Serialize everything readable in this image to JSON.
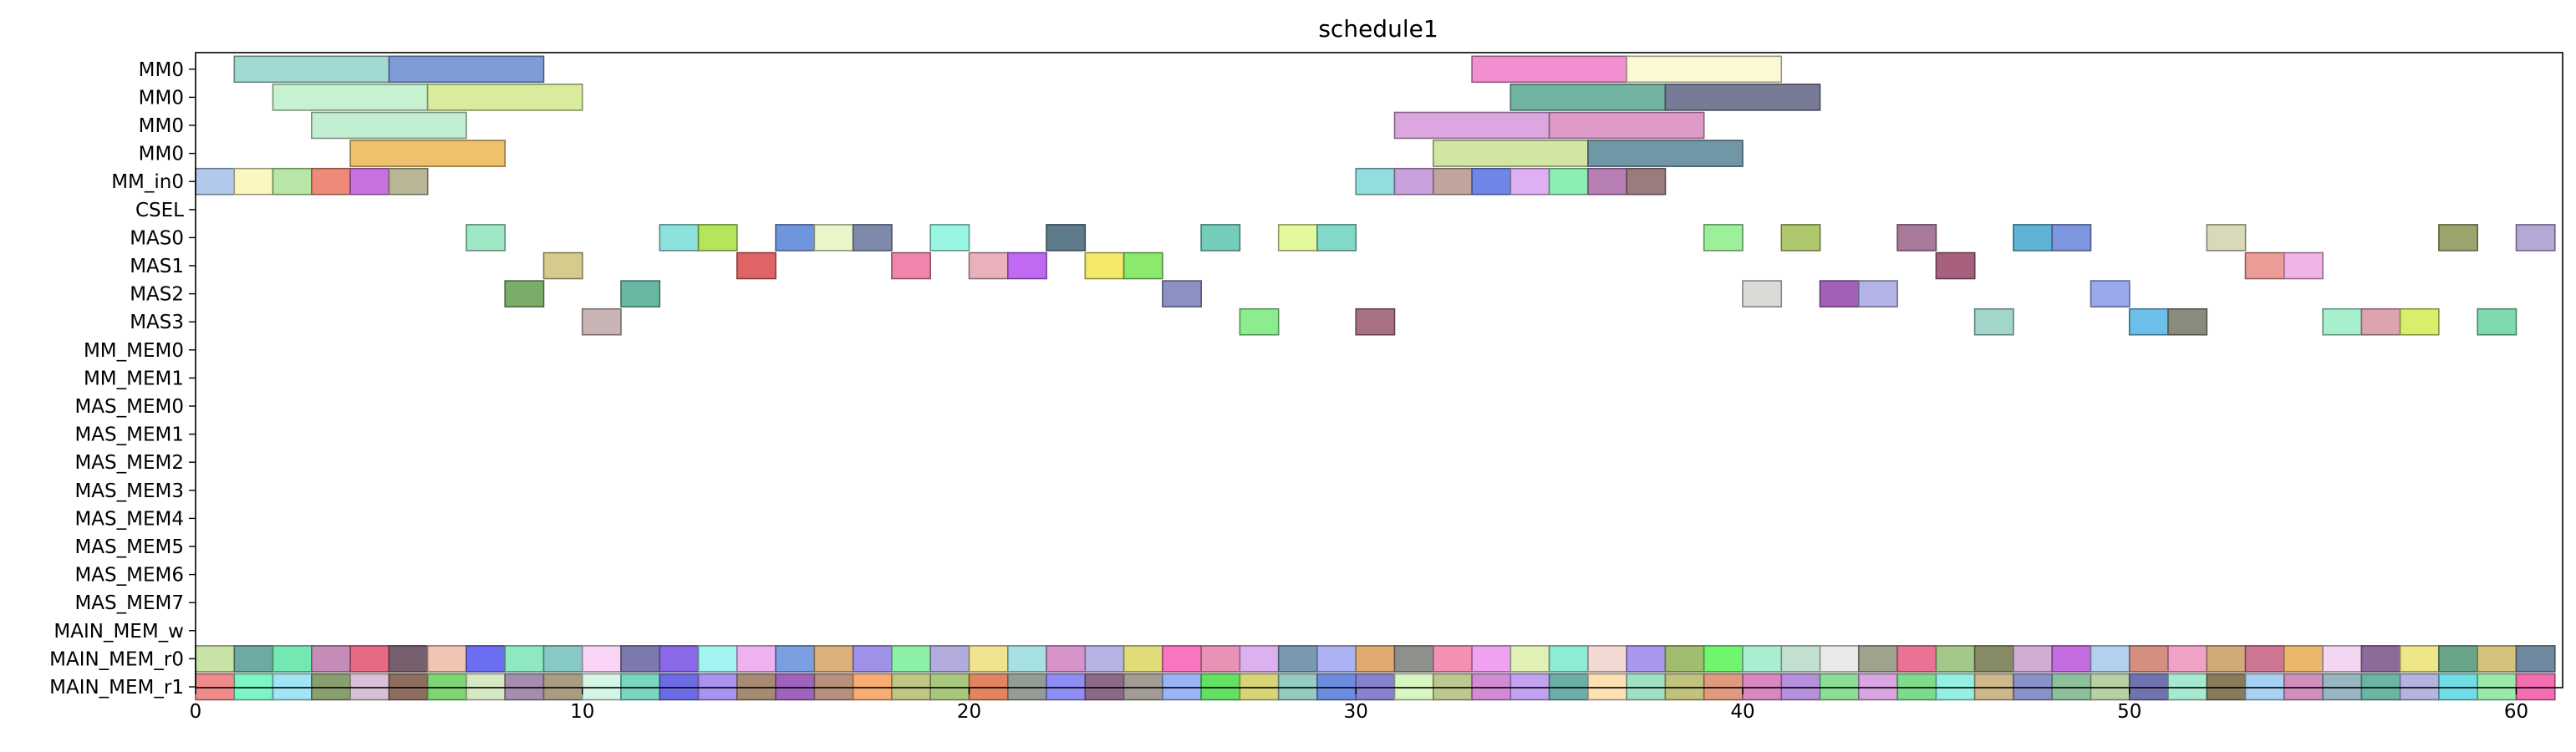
{
  "chart_data": {
    "type": "gantt",
    "title": "schedule1",
    "xlabel": "",
    "ylabel": "",
    "xlim": [
      0,
      61.2
    ],
    "x_ticks": [
      0,
      10,
      20,
      30,
      40,
      50,
      60
    ],
    "grid": false,
    "rows": [
      "MM0",
      "MM0",
      "MM0",
      "MM0",
      "MM_in0",
      "CSEL",
      "MAS0",
      "MAS1",
      "MAS2",
      "MAS3",
      "MM_MEM0",
      "MM_MEM1",
      "MAS_MEM0",
      "MAS_MEM1",
      "MAS_MEM2",
      "MAS_MEM3",
      "MAS_MEM4",
      "MAS_MEM5",
      "MAS_MEM6",
      "MAS_MEM7",
      "MAIN_MEM_w",
      "MAIN_MEM_r0",
      "MAIN_MEM_r1"
    ],
    "tasks": [
      {
        "row": 0,
        "start": 1,
        "end": 5,
        "color": "#a3d9d3"
      },
      {
        "row": 0,
        "start": 5,
        "end": 9,
        "color": "#7f9bd6"
      },
      {
        "row": 0,
        "start": 33,
        "end": 37,
        "color": "#f28fd0"
      },
      {
        "row": 0,
        "start": 37,
        "end": 41,
        "color": "#fbf8d4"
      },
      {
        "row": 1,
        "start": 2,
        "end": 6,
        "color": "#c6f2cf"
      },
      {
        "row": 1,
        "start": 6,
        "end": 10,
        "color": "#d9ec9c"
      },
      {
        "row": 1,
        "start": 34,
        "end": 38,
        "color": "#6fb3a0"
      },
      {
        "row": 1,
        "start": 38,
        "end": 42,
        "color": "#787b95"
      },
      {
        "row": 2,
        "start": 3,
        "end": 7,
        "color": "#c2efd2"
      },
      {
        "row": 2,
        "start": 31,
        "end": 35,
        "color": "#dca6e0"
      },
      {
        "row": 2,
        "start": 35,
        "end": 39,
        "color": "#de9ac8"
      },
      {
        "row": 3,
        "start": 4,
        "end": 8,
        "color": "#f0c16c"
      },
      {
        "row": 3,
        "start": 32,
        "end": 36,
        "color": "#d1e6a3"
      },
      {
        "row": 3,
        "start": 36,
        "end": 40,
        "color": "#6f97a6"
      },
      {
        "row": 4,
        "start": 0,
        "end": 1,
        "color": "#b0c9ec"
      },
      {
        "row": 4,
        "start": 1,
        "end": 2,
        "color": "#fbf7c1"
      },
      {
        "row": 4,
        "start": 2,
        "end": 3,
        "color": "#b8e6a6"
      },
      {
        "row": 4,
        "start": 3,
        "end": 4,
        "color": "#ef8a78"
      },
      {
        "row": 4,
        "start": 4,
        "end": 5,
        "color": "#c872e0"
      },
      {
        "row": 4,
        "start": 5,
        "end": 6,
        "color": "#bab796"
      },
      {
        "row": 4,
        "start": 30,
        "end": 31,
        "color": "#92dede"
      },
      {
        "row": 4,
        "start": 31,
        "end": 32,
        "color": "#c9a2dd"
      },
      {
        "row": 4,
        "start": 32,
        "end": 33,
        "color": "#c0a59e"
      },
      {
        "row": 4,
        "start": 33,
        "end": 34,
        "color": "#6d86e8"
      },
      {
        "row": 4,
        "start": 34,
        "end": 35,
        "color": "#deb0f2"
      },
      {
        "row": 4,
        "start": 35,
        "end": 36,
        "color": "#8ceeb2"
      },
      {
        "row": 4,
        "start": 36,
        "end": 37,
        "color": "#b77fb4"
      },
      {
        "row": 4,
        "start": 37,
        "end": 38,
        "color": "#9a7b7e"
      },
      {
        "row": 6,
        "start": 7,
        "end": 8,
        "color": "#9ee8c6"
      },
      {
        "row": 6,
        "start": 12,
        "end": 13,
        "color": "#8de2de"
      },
      {
        "row": 6,
        "start": 13,
        "end": 14,
        "color": "#b5e55c"
      },
      {
        "row": 6,
        "start": 15,
        "end": 16,
        "color": "#6f96dd"
      },
      {
        "row": 6,
        "start": 16,
        "end": 17,
        "color": "#eaf5ca"
      },
      {
        "row": 6,
        "start": 17,
        "end": 18,
        "color": "#7e8aac"
      },
      {
        "row": 6,
        "start": 19,
        "end": 20,
        "color": "#98f6e2"
      },
      {
        "row": 6,
        "start": 22,
        "end": 23,
        "color": "#5e7b8c"
      },
      {
        "row": 6,
        "start": 26,
        "end": 27,
        "color": "#74cdbb"
      },
      {
        "row": 6,
        "start": 28,
        "end": 29,
        "color": "#e4f99e"
      },
      {
        "row": 6,
        "start": 29,
        "end": 30,
        "color": "#83d9c8"
      },
      {
        "row": 6,
        "start": 39,
        "end": 40,
        "color": "#9cf09a"
      },
      {
        "row": 6,
        "start": 41,
        "end": 42,
        "color": "#b0c86d"
      },
      {
        "row": 6,
        "start": 44,
        "end": 45,
        "color": "#a87a9a"
      },
      {
        "row": 6,
        "start": 47,
        "end": 48,
        "color": "#5eb3d6"
      },
      {
        "row": 6,
        "start": 48,
        "end": 49,
        "color": "#7e96e0"
      },
      {
        "row": 6,
        "start": 52,
        "end": 53,
        "color": "#d9d9b9"
      },
      {
        "row": 6,
        "start": 58,
        "end": 59,
        "color": "#9aa46d"
      },
      {
        "row": 6,
        "start": 60,
        "end": 61,
        "color": "#b5a7d6"
      },
      {
        "row": 7,
        "start": 9,
        "end": 10,
        "color": "#d6cb8c"
      },
      {
        "row": 7,
        "start": 14,
        "end": 15,
        "color": "#e06465"
      },
      {
        "row": 7,
        "start": 18,
        "end": 19,
        "color": "#ef84ac"
      },
      {
        "row": 7,
        "start": 20,
        "end": 21,
        "color": "#e8b1bb"
      },
      {
        "row": 7,
        "start": 21,
        "end": 22,
        "color": "#c06af3"
      },
      {
        "row": 7,
        "start": 23,
        "end": 24,
        "color": "#f3e86a"
      },
      {
        "row": 7,
        "start": 24,
        "end": 25,
        "color": "#8be96b"
      },
      {
        "row": 7,
        "start": 45,
        "end": 46,
        "color": "#a8607f"
      },
      {
        "row": 7,
        "start": 53,
        "end": 54,
        "color": "#ec9c96"
      },
      {
        "row": 7,
        "start": 54,
        "end": 55,
        "color": "#f0b4e6"
      },
      {
        "row": 8,
        "start": 8,
        "end": 9,
        "color": "#7aae68"
      },
      {
        "row": 8,
        "start": 11,
        "end": 12,
        "color": "#68b7a2"
      },
      {
        "row": 8,
        "start": 25,
        "end": 26,
        "color": "#8c90c2"
      },
      {
        "row": 8,
        "start": 40,
        "end": 41,
        "color": "#d9dbd6"
      },
      {
        "row": 8,
        "start": 42,
        "end": 43,
        "color": "#a261b6"
      },
      {
        "row": 8,
        "start": 43,
        "end": 44,
        "color": "#b3b3e6"
      },
      {
        "row": 8,
        "start": 49,
        "end": 50,
        "color": "#9aa8ee"
      },
      {
        "row": 9,
        "start": 10,
        "end": 11,
        "color": "#c8b4b4"
      },
      {
        "row": 9,
        "start": 27,
        "end": 28,
        "color": "#8ced8e"
      },
      {
        "row": 9,
        "start": 30,
        "end": 31,
        "color": "#a87085"
      },
      {
        "row": 9,
        "start": 46,
        "end": 47,
        "color": "#a3d6cb"
      },
      {
        "row": 9,
        "start": 50,
        "end": 51,
        "color": "#6bbfe8"
      },
      {
        "row": 9,
        "start": 51,
        "end": 52,
        "color": "#8a8b7c"
      },
      {
        "row": 9,
        "start": 55,
        "end": 56,
        "color": "#a7efcd"
      },
      {
        "row": 9,
        "start": 56,
        "end": 57,
        "color": "#dba4ae"
      },
      {
        "row": 9,
        "start": 57,
        "end": 58,
        "color": "#dbee6b"
      },
      {
        "row": 9,
        "start": 59,
        "end": 60,
        "color": "#7fd9ae"
      }
    ],
    "unit_rows": [
      {
        "row": 21,
        "colors": [
          "#c9e3a6",
          "#6fa9a3",
          "#74e8b0",
          "#c58cb8",
          "#e56a82",
          "#76606e",
          "#f1c5b4",
          "#6d6ff2",
          "#8fe9c0",
          "#87c9c3",
          "#f9d4f4",
          "#7c79ad",
          "#8b68e6",
          "#a3f4f0",
          "#eeb2f0",
          "#7b9fe0",
          "#dcb07a",
          "#9f90e8",
          "#8cf0a7",
          "#b1acdc",
          "#f1e490",
          "#a7e0e0",
          "#d794c9",
          "#b7b4e5",
          "#e0dc7a",
          "#f975c0",
          "#e892b6",
          "#dcb1ef",
          "#7899b0",
          "#acb2f2",
          "#dfab70",
          "#8e918b",
          "#f291b4",
          "#eea2ef",
          "#e1f0b4",
          "#8fecd4",
          "#f3d9d4",
          "#a997ee",
          "#9fbc6f",
          "#70f56f",
          "#a9eed0",
          "#c3e0d0",
          "#eaeaea",
          "#9fa38e",
          "#e97295",
          "#a3c789",
          "#868a65",
          "#d1acd3",
          "#c56ce0",
          "#b3d1ef",
          "#d58f80",
          "#efa2c6",
          "#d0aa79",
          "#cd7694",
          "#eab86d",
          "#f3d6f1",
          "#8c6a99",
          "#efe787",
          "#6aa58a",
          "#d5c27a",
          "#6f8aa0"
        ]
      },
      {
        "row": 22,
        "colors": [
          "#f08b8b",
          "#7df5c4",
          "#a0e5f3",
          "#8a9f6e",
          "#d8c1d6",
          "#8f6d5e",
          "#7ed573",
          "#d6e9c4",
          "#a58daf",
          "#a89c81",
          "#d5f5e6",
          "#78d6c1",
          "#6d6be4",
          "#a893f0",
          "#a68a72",
          "#a063bd",
          "#b8907d",
          "#f8ad74",
          "#c0c684",
          "#aac87d",
          "#e08560",
          "#939d96",
          "#8e8ef4",
          "#8c6889",
          "#a39c95",
          "#9cb3f5",
          "#64e063",
          "#d8d577",
          "#96cbc2",
          "#6c8cdf",
          "#8881cd",
          "#d8f6c0",
          "#bdc890",
          "#d28cd6",
          "#c4a2f2",
          "#6caea8",
          "#fde0b3",
          "#a2e0c3",
          "#c0c27d",
          "#e09a80",
          "#d887c0",
          "#b68fdd",
          "#8bde95",
          "#d9a5e2",
          "#7ddc8c",
          "#93f0e3",
          "#cdb98b",
          "#8a91c8",
          "#8ec09c",
          "#b7d1a5",
          "#7173ae",
          "#a7e9d0",
          "#877b5a",
          "#a7d2f3",
          "#cf8fbf",
          "#9ab6c2",
          "#6ab5a3",
          "#b5b3e0",
          "#71dde7",
          "#9be9a9",
          "#f46eb2"
        ]
      }
    ]
  }
}
